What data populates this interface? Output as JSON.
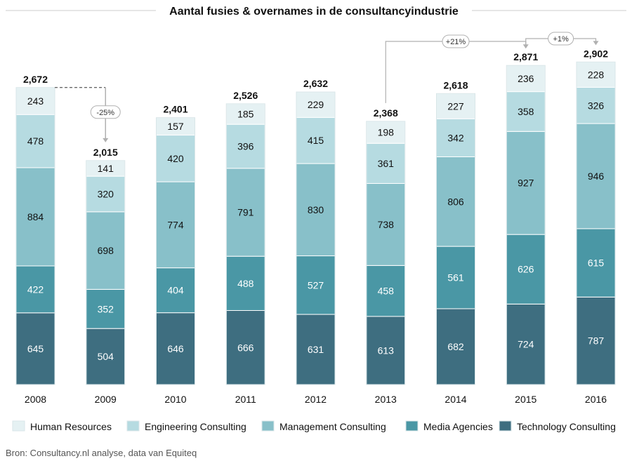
{
  "chart_data": {
    "type": "bar",
    "stacked": true,
    "title": "Aantal fusies & overnames in de consultancyindustrie",
    "categories": [
      "2008",
      "2009",
      "2010",
      "2011",
      "2012",
      "2013",
      "2014",
      "2015",
      "2016"
    ],
    "series": [
      {
        "name": "Technology Consulting",
        "color": "#3e6e80",
        "text_color": "#ffffff",
        "values": [
          645,
          504,
          646,
          666,
          631,
          613,
          682,
          724,
          787
        ]
      },
      {
        "name": "Media Agencies",
        "color": "#4a97a5",
        "text_color": "#ffffff",
        "values": [
          422,
          352,
          404,
          488,
          527,
          458,
          561,
          626,
          615
        ]
      },
      {
        "name": "Management Consulting",
        "color": "#88c0c9",
        "text_color": "#111111",
        "values": [
          884,
          698,
          774,
          791,
          830,
          738,
          806,
          927,
          946
        ]
      },
      {
        "name": "Engineering Consulting",
        "color": "#b6dbe1",
        "text_color": "#111111",
        "values": [
          478,
          320,
          420,
          396,
          415,
          361,
          342,
          358,
          326
        ]
      },
      {
        "name": "Human Resources",
        "color": "#e5f1f3",
        "text_color": "#111111",
        "values": [
          243,
          141,
          157,
          185,
          229,
          198,
          227,
          236,
          228
        ]
      }
    ],
    "totals": [
      "2,672",
      "2,015",
      "2,401",
      "2,526",
      "2,632",
      "2,368",
      "2,618",
      "2,871",
      "2,902"
    ],
    "legend_order": [
      "Human Resources",
      "Engineering Consulting",
      "Management Consulting",
      "Media Agencies",
      "Technology Consulting"
    ],
    "legend_position": "bottom",
    "annotations": [
      {
        "from": "2008",
        "to": "2009",
        "text": "-25%"
      },
      {
        "from": "2013",
        "to": "2015",
        "text": "+21%"
      },
      {
        "from": "2015",
        "to": "2016",
        "text": "+1%"
      }
    ],
    "ylim": [
      0,
      3000
    ],
    "source": "Bron: Consultancy.nl analyse, data van Equiteq"
  }
}
